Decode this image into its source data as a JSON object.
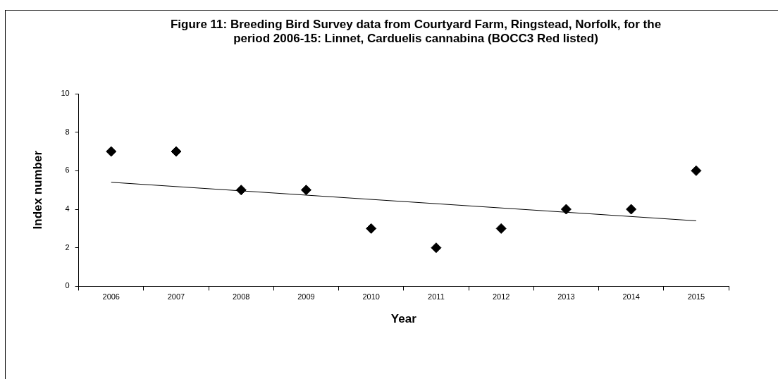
{
  "chart_data": {
    "type": "scatter",
    "title": "Figure 11: Breeding Bird Survey data from Courtyard Farm, Ringstead, Norfolk, for the period 2006-15: Linnet, Carduelis cannabina (BOCC3 Red listed)",
    "xlabel": "Year",
    "ylabel": "Index number",
    "categories": [
      "2006",
      "2007",
      "2008",
      "2009",
      "2010",
      "2011",
      "2012",
      "2013",
      "2014",
      "2015"
    ],
    "series": [
      {
        "color": "#000000",
        "marker": "diamond",
        "values": [
          7,
          7,
          5,
          5,
          3,
          2,
          3,
          4,
          4,
          6
        ]
      },
      {
        "type": "line",
        "color": "#000000",
        "values": [
          5.4,
          null,
          null,
          null,
          null,
          null,
          null,
          null,
          null,
          3.4
        ]
      }
    ],
    "ylim": [
      0,
      10
    ],
    "yticks": [
      0,
      2,
      4,
      6,
      8,
      10
    ],
    "grid": false,
    "legend": false
  }
}
